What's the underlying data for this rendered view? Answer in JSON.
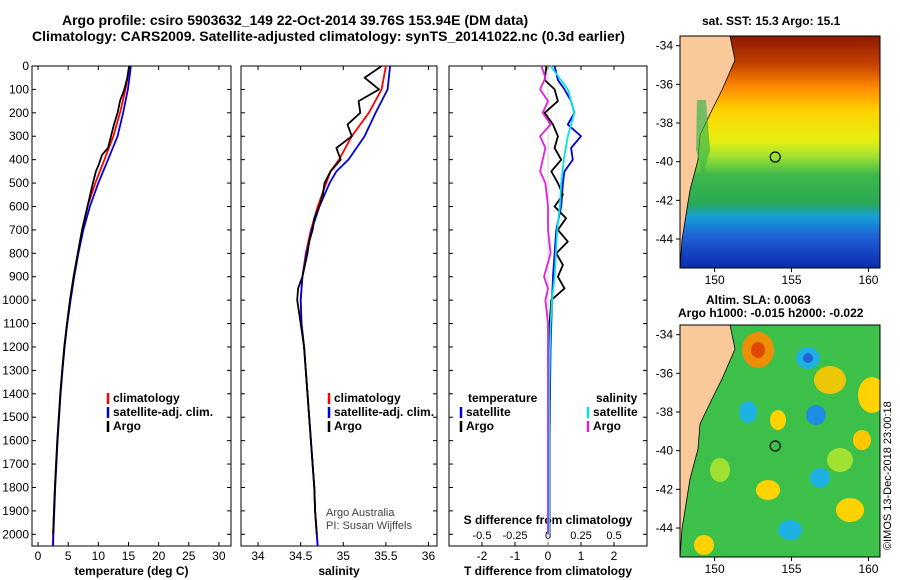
{
  "header": {
    "title_line1": "Argo profile: csiro 5903632_149 22-Oct-2014 39.76S 153.94E (DM data)",
    "title_line2": "Climatology: CARS2009. Satellite-adjusted climatology: synTS_20141022.nc (0.3d earlier)"
  },
  "maps": {
    "sst_title": "sat. SST: 15.3 Argo: 15.1",
    "sla_title1": "Altim. SLA: 0.0063",
    "sla_title2": "Argo h1000: -0.015 h2000: -0.022",
    "lat_ticks": [
      "-34",
      "-36",
      "-38",
      "-40",
      "-42",
      "-44"
    ],
    "lon_ticks": [
      "150",
      "155",
      "160"
    ],
    "float_position": {
      "lon": 153.94,
      "lat": -39.76
    }
  },
  "credits": {
    "line1": "Argo Australia",
    "line2": "PI: Susan Wijffels",
    "stamp": "©IMOS 13-Dec-2018 23:00:18"
  },
  "colors": {
    "climatology": "#ff0000",
    "satellite": "#0000dd",
    "argo": "#000000",
    "sat_salinity": "#00e5e5",
    "argo_salinity": "#e020e0",
    "land": "#f9c99a"
  },
  "chart_data": [
    {
      "type": "line",
      "panel": "temperature",
      "xlabel": "temperature (deg C)",
      "ylabel": "",
      "xlim": [
        -1,
        32
      ],
      "ylim": [
        2050,
        0
      ],
      "x_ticks": [
        "0",
        "5",
        "10",
        "15",
        "20",
        "25",
        "30"
      ],
      "y_ticks": [
        "0",
        "100",
        "200",
        "300",
        "400",
        "500",
        "600",
        "700",
        "800",
        "900",
        "1000",
        "1100",
        "1200",
        "1300",
        "1400",
        "1500",
        "1600",
        "1700",
        "1800",
        "1900",
        "2000"
      ],
      "legend": [
        "climatology",
        "satellite-adj. clim.",
        "Argo"
      ],
      "series": [
        {
          "name": "climatology",
          "color": "#ff0000",
          "depth": [
            0,
            100,
            200,
            300,
            400,
            500,
            600,
            700,
            800,
            900,
            1000,
            1100,
            1200,
            1300,
            1400,
            1500,
            1600,
            1700,
            1800,
            1900,
            2000,
            2050
          ],
          "values": [
            15.2,
            14.5,
            13.6,
            12.5,
            11.0,
            9.5,
            8.2,
            7.3,
            6.6,
            5.9,
            5.3,
            4.8,
            4.35,
            4.0,
            3.7,
            3.45,
            3.2,
            3.0,
            2.8,
            2.65,
            2.5,
            2.45
          ]
        },
        {
          "name": "satellite-adj. clim.",
          "color": "#0000dd",
          "depth": [
            0,
            100,
            200,
            300,
            400,
            500,
            600,
            700,
            800,
            900,
            1000,
            1100,
            1200,
            1300,
            1400,
            1500,
            1600,
            1700,
            1800,
            1900,
            2000,
            2050
          ],
          "values": [
            15.4,
            14.9,
            14.1,
            13.2,
            11.6,
            10.0,
            8.6,
            7.5,
            6.7,
            6.0,
            5.4,
            4.85,
            4.4,
            4.05,
            3.75,
            3.5,
            3.25,
            3.05,
            2.85,
            2.7,
            2.55,
            2.5
          ]
        },
        {
          "name": "Argo",
          "color": "#000000",
          "depth": [
            0,
            50,
            100,
            150,
            200,
            250,
            300,
            350,
            380,
            420,
            450,
            500,
            600,
            700,
            800,
            900,
            1000,
            1100,
            1200,
            1300,
            1400,
            1500,
            1600,
            1700,
            1800,
            1900,
            2000
          ],
          "values": [
            15.1,
            14.8,
            14.3,
            13.6,
            13.2,
            12.6,
            12.1,
            11.6,
            10.6,
            10.1,
            9.6,
            9.1,
            8.2,
            7.3,
            6.6,
            5.9,
            5.3,
            4.8,
            4.35,
            4.0,
            3.7,
            3.45,
            3.2,
            3.0,
            2.8,
            2.65,
            2.5
          ]
        }
      ]
    },
    {
      "type": "line",
      "panel": "salinity",
      "xlabel": "salinity",
      "xlim": [
        33.8,
        36.1
      ],
      "ylim": [
        2050,
        0
      ],
      "x_ticks": [
        "34",
        "34.5",
        "35",
        "35.5",
        "36"
      ],
      "legend": [
        "climatology",
        "satellite-adj. clim.",
        "Argo"
      ],
      "series": [
        {
          "name": "climatology",
          "color": "#ff0000",
          "depth": [
            0,
            100,
            200,
            300,
            400,
            450,
            500,
            600,
            700,
            800,
            900,
            1000,
            1100,
            1200,
            1300,
            1400,
            1500,
            1600,
            1700,
            1800,
            1900,
            2000,
            2050
          ],
          "values": [
            35.5,
            35.45,
            35.3,
            35.1,
            34.95,
            34.85,
            34.8,
            34.7,
            34.62,
            34.56,
            34.52,
            34.5,
            34.51,
            34.54,
            34.56,
            34.58,
            34.6,
            34.62,
            34.64,
            34.66,
            34.67,
            34.69,
            34.7
          ]
        },
        {
          "name": "satellite-adj. clim.",
          "color": "#0000dd",
          "depth": [
            0,
            100,
            200,
            300,
            400,
            450,
            500,
            600,
            700,
            800,
            900,
            1000,
            1100,
            1200,
            1300,
            1400,
            1500,
            1600,
            1700,
            1800,
            1900,
            2000,
            2050
          ],
          "values": [
            35.55,
            35.52,
            35.38,
            35.25,
            35.06,
            34.92,
            34.84,
            34.72,
            34.63,
            34.57,
            34.52,
            34.5,
            34.51,
            34.54,
            34.56,
            34.58,
            34.6,
            34.62,
            34.64,
            34.66,
            34.67,
            34.69,
            34.7
          ]
        },
        {
          "name": "Argo",
          "color": "#000000",
          "depth": [
            0,
            50,
            100,
            150,
            200,
            250,
            300,
            350,
            400,
            450,
            500,
            550,
            600,
            650,
            700,
            750,
            800,
            900,
            950,
            1000,
            1100,
            1200,
            1300,
            1400,
            1500,
            1600,
            1700,
            1800,
            1900,
            2000
          ],
          "values": [
            35.45,
            35.25,
            35.42,
            35.18,
            35.2,
            35.05,
            35.1,
            34.92,
            34.97,
            34.85,
            34.78,
            34.76,
            34.72,
            34.66,
            34.64,
            34.6,
            34.58,
            34.52,
            34.47,
            34.46,
            34.5,
            34.54,
            34.56,
            34.58,
            34.6,
            34.62,
            34.64,
            34.66,
            34.67,
            34.69
          ]
        }
      ]
    },
    {
      "type": "line",
      "panel": "difference",
      "xlabel": "T difference from climatology",
      "xlabel2": "S difference from climatology",
      "xlim": [
        -3,
        3
      ],
      "ylim": [
        2050,
        0
      ],
      "x_ticks": [
        "-2",
        "-1",
        "0",
        "1",
        "2"
      ],
      "x_ticks_salinity": [
        "-0.5",
        "-0.25",
        "0",
        "0.25",
        "0.5"
      ],
      "legend_temperature_title": "temperature",
      "legend_temperature": [
        "satellite",
        "Argo"
      ],
      "legend_salinity_title": "salinity",
      "legend_salinity": [
        "satellite",
        "Argo"
      ],
      "series": [
        {
          "name": "T satellite",
          "color": "#0000dd",
          "depth": [
            0,
            60,
            100,
            150,
            200,
            250,
            300,
            350,
            400,
            450,
            500,
            600,
            700,
            800,
            900,
            1000,
            1100,
            1200,
            1400,
            1600,
            1800,
            2000
          ],
          "values": [
            0.2,
            0.3,
            0.5,
            0.7,
            0.8,
            0.6,
            1.0,
            0.7,
            0.75,
            0.5,
            0.45,
            0.4,
            0.25,
            0.2,
            0.15,
            0.12,
            0.1,
            0.08,
            0.06,
            0.05,
            0.05,
            0.05
          ]
        },
        {
          "name": "T Argo",
          "color": "#000000",
          "depth": [
            0,
            60,
            100,
            150,
            200,
            250,
            300,
            350,
            400,
            450,
            500,
            550,
            600,
            650,
            700,
            750,
            800,
            850,
            900,
            950,
            1000,
            1100,
            1200,
            1300,
            1400,
            1600,
            1800,
            2000
          ],
          "values": [
            -0.05,
            -0.1,
            0.2,
            0.3,
            -0.1,
            0.15,
            0.3,
            0.2,
            0.4,
            0.1,
            0.3,
            0.45,
            0.2,
            0.55,
            0.3,
            0.6,
            0.25,
            0.45,
            0.3,
            0.5,
            0.1,
            0.05,
            0.05,
            0.05,
            0.05,
            0.05,
            0.05,
            0.05
          ]
        },
        {
          "name": "S satellite",
          "color": "#00e5e5",
          "depth": [
            0,
            100,
            200,
            300,
            400,
            500,
            600,
            700,
            800,
            900,
            1000,
            1100,
            1200,
            1400,
            1600,
            1800,
            2000
          ],
          "values": [
            0.02,
            0.15,
            0.2,
            0.15,
            0.12,
            0.1,
            0.09,
            0.07,
            0.06,
            0.05,
            0.03,
            0.02,
            0.015,
            0.01,
            0.01,
            0.01,
            0.01
          ]
        },
        {
          "name": "S Argo",
          "color": "#e020e0",
          "depth": [
            0,
            50,
            100,
            150,
            200,
            250,
            300,
            350,
            400,
            450,
            500,
            600,
            700,
            800,
            900,
            950,
            1000,
            1100,
            1200,
            1400,
            1600,
            1800,
            2000
          ],
          "values": [
            -0.05,
            -0.02,
            -0.06,
            0.0,
            -0.04,
            0.02,
            -0.06,
            -0.02,
            -0.04,
            -0.06,
            -0.02,
            0.0,
            0.0,
            0.02,
            -0.03,
            0.0,
            -0.02,
            0.0,
            0.0,
            0.0,
            0.0,
            0.0,
            0.0
          ]
        }
      ]
    }
  ]
}
